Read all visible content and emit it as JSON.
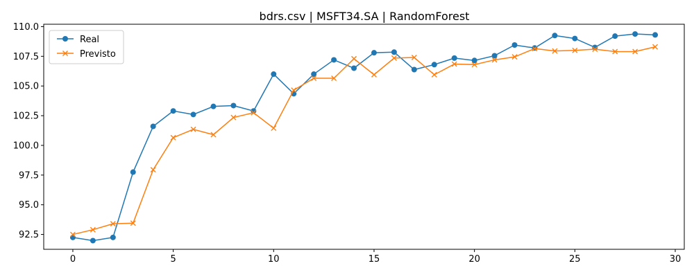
{
  "chart_data": {
    "type": "line",
    "title": "bdrs.csv | MSFT34.SA | RandomForest",
    "xlabel": "",
    "ylabel": "",
    "x": [
      0,
      1,
      2,
      3,
      4,
      5,
      6,
      7,
      8,
      9,
      10,
      11,
      12,
      13,
      14,
      15,
      16,
      17,
      18,
      19,
      20,
      21,
      22,
      23,
      24,
      25,
      26,
      27,
      28,
      29
    ],
    "xlim": [
      -1.45,
      30.45
    ],
    "ylim": [
      91.25,
      110.2
    ],
    "x_ticks": [
      0,
      5,
      10,
      15,
      20,
      25,
      30
    ],
    "y_ticks": [
      92.5,
      95.0,
      97.5,
      100.0,
      102.5,
      105.0,
      107.5,
      110.0
    ],
    "grid": false,
    "legend_position": "top-left",
    "series": [
      {
        "name": "Real",
        "color": "#1f77b4",
        "marker": "circle",
        "values": [
          92.25,
          91.98,
          92.25,
          97.75,
          101.6,
          102.9,
          102.6,
          103.28,
          103.35,
          102.9,
          106.0,
          104.35,
          106.0,
          107.2,
          106.5,
          107.8,
          107.85,
          106.38,
          106.8,
          107.35,
          107.15,
          107.55,
          108.45,
          108.2,
          109.25,
          109.0,
          108.25,
          109.2,
          109.38,
          109.3
        ]
      },
      {
        "name": "Previsto",
        "color": "#ff7f0e",
        "marker": "x",
        "values": [
          92.5,
          92.9,
          93.4,
          93.45,
          97.95,
          100.65,
          101.35,
          100.9,
          102.35,
          102.75,
          101.45,
          104.65,
          105.65,
          105.65,
          107.3,
          105.95,
          107.35,
          107.4,
          105.95,
          106.85,
          106.8,
          107.2,
          107.45,
          108.15,
          107.95,
          108.0,
          108.1,
          107.9,
          107.9,
          108.3
        ]
      }
    ]
  }
}
